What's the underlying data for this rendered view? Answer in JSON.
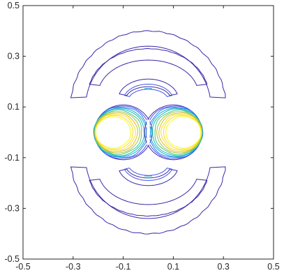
{
  "chart_data": {
    "type": "contour",
    "title": "",
    "xlabel": "",
    "ylabel": "",
    "xlim": [
      -0.5,
      0.5
    ],
    "ylim": [
      -0.5,
      0.5
    ],
    "x_ticks": [
      -0.5,
      -0.3,
      -0.1,
      0.1,
      0.3,
      0.5
    ],
    "y_ticks": [
      0.5,
      0.3,
      0.1,
      -0.1,
      -0.3,
      -0.5
    ],
    "x_tick_labels": [
      "-0.5",
      "-0.3",
      "-0.1",
      "0.1",
      "0.3",
      "0.5"
    ],
    "y_tick_labels": [
      "0.5",
      "0.3",
      "0.1",
      "-0.1",
      "-0.3",
      "-0.5"
    ],
    "grid": false,
    "colormap": "parula",
    "colors": [
      "#3e26a8",
      "#4352e6",
      "#2b7bf5",
      "#1aa3d8",
      "#12bcb4",
      "#44c77f",
      "#9bc843",
      "#e0b92d",
      "#f9df25",
      "#f9fb0e"
    ],
    "structures": [
      {
        "kind": "outer-arc",
        "side": "top",
        "x_range": [
          -0.31,
          0.31
        ],
        "y_range": [
          0.1,
          0.4
        ]
      },
      {
        "kind": "inner-arc",
        "side": "top",
        "x_range": [
          -0.25,
          0.25
        ],
        "y_range": [
          0.15,
          0.33
        ]
      },
      {
        "kind": "outer-arc",
        "side": "bottom",
        "x_range": [
          -0.31,
          0.31
        ],
        "y_range": [
          -0.4,
          -0.1
        ]
      },
      {
        "kind": "inner-arc",
        "side": "bottom",
        "x_range": [
          -0.25,
          0.25
        ],
        "y_range": [
          -0.33,
          -0.15
        ]
      },
      {
        "kind": "central-lobe",
        "side": "left",
        "center": [
          -0.1,
          0.0
        ],
        "radius": 0.1
      },
      {
        "kind": "central-lobe",
        "side": "right",
        "center": [
          0.1,
          0.0
        ],
        "radius": 0.1
      }
    ]
  }
}
